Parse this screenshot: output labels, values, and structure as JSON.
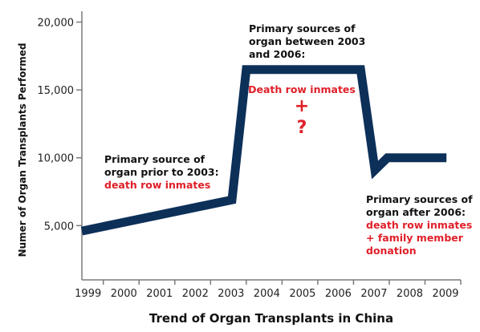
{
  "chart_data": {
    "type": "line",
    "title": "Trend of Organ Transplants in China",
    "xlabel": "",
    "ylabel": "Numer of Organ Transplants Performed",
    "x_ticks": [
      "1999",
      "2000",
      "2001",
      "2002",
      "2003",
      "2004",
      "2005",
      "2006",
      "2007",
      "2008",
      "2009"
    ],
    "y_ticks": [
      "5,000",
      "10,000",
      "15,000",
      "20,000"
    ],
    "xlim": [
      1998.4,
      2009
    ],
    "ylim": [
      1000,
      20800
    ],
    "series": [
      {
        "color": "#0d3059",
        "points": [
          {
            "x": 1998.4,
            "y": 4600
          },
          {
            "x": 2002.6,
            "y": 6900
          },
          {
            "x": 2003.0,
            "y": 16500
          },
          {
            "x": 2006.2,
            "y": 16500
          },
          {
            "x": 2006.6,
            "y": 9100
          },
          {
            "x": 2006.95,
            "y": 10000
          },
          {
            "x": 2008.6,
            "y": 10000
          }
        ]
      }
    ],
    "annotations": {
      "before_2003": {
        "lines": [
          "Primary source of",
          "organ prior to 2003:"
        ],
        "highlight": [
          "death row inmates"
        ]
      },
      "between_2003_2006": {
        "lines": [
          "Primary sources of",
          "organ between 2003",
          "and 2006:"
        ]
      },
      "middle": {
        "text": "Death row inmates",
        "plus": "+",
        "question": "?"
      },
      "after_2006": {
        "lines": [
          "Primary sources of",
          "organ after 2006:"
        ],
        "highlight": [
          "death row inmates",
          "+ family member",
          "donation"
        ]
      }
    },
    "colors": {
      "line": "#0d3059",
      "highlight": "#e0202a",
      "axis": "#7a7a7a"
    }
  }
}
